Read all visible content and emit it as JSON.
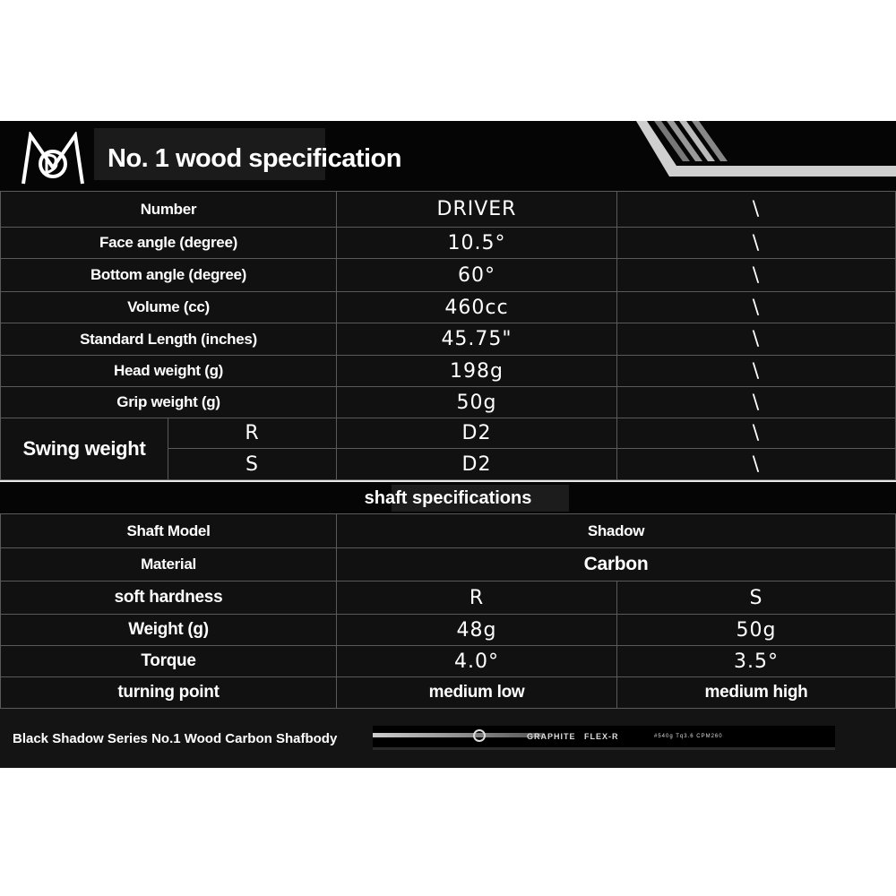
{
  "header": {
    "title": "No. 1 wood specification",
    "logo": "MBG"
  },
  "wood_specs": [
    {
      "label": "Number",
      "value": "DRIVER",
      "extra": "\\"
    },
    {
      "label": "Face angle (degree)",
      "value": "10.5°",
      "extra": "\\"
    },
    {
      "label": "Bottom angle (degree)",
      "value": "60°",
      "extra": "\\"
    },
    {
      "label": "Volume (cc)",
      "value": "460cc",
      "extra": "\\"
    },
    {
      "label": "Standard Length (inches)",
      "value": "45.75\"",
      "extra": "\\"
    },
    {
      "label": "Head weight (g)",
      "value": "198g",
      "extra": "\\"
    },
    {
      "label": "Grip weight (g)",
      "value": "50g",
      "extra": "\\"
    }
  ],
  "swing_weight": {
    "label": "Swing weight",
    "rows": [
      {
        "flex": "R",
        "value": "D2",
        "extra": "\\"
      },
      {
        "flex": "S",
        "value": "D2",
        "extra": "\\"
      }
    ]
  },
  "shaft": {
    "title": "shaft specifications",
    "model": {
      "label": "Shaft Model",
      "value": "Shadow"
    },
    "material": {
      "label": "Material",
      "value": "Carbon"
    },
    "rows": [
      {
        "label": "soft hardness",
        "r": "R",
        "s": "S"
      },
      {
        "label": "Weight (g)",
        "r": "48g",
        "s": "50g"
      },
      {
        "label": "Torque",
        "r": "4.0°",
        "s": "3.5°"
      },
      {
        "label": "turning point",
        "r": "medium low",
        "s": "medium high"
      }
    ]
  },
  "footer": {
    "caption": "Black Shadow Series No.1 Wood Carbon Shafbody",
    "shaft_print": [
      "GRAPHITE",
      "FLEX-R",
      "#540g  Tq3.6  CPM260"
    ]
  }
}
